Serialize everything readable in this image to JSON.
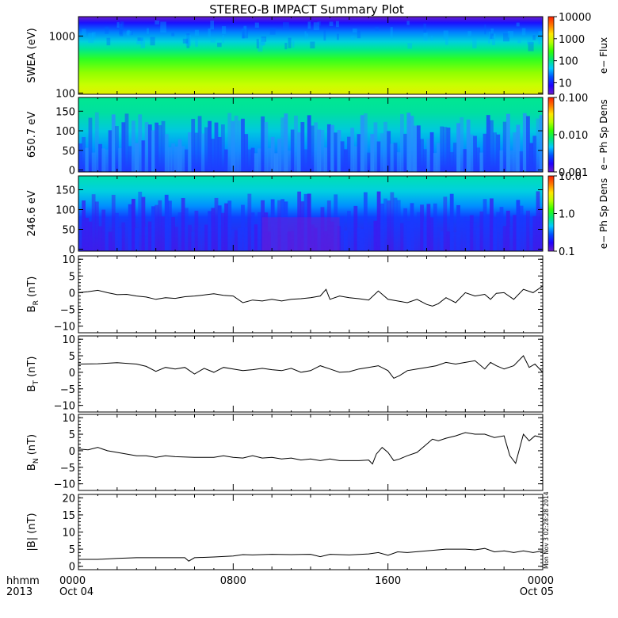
{
  "title": "STEREO-B IMPACT Summary Plot",
  "timestamp": "Mon Nov 3 02:28:28 2014",
  "time_axis": {
    "label_top": "hhmm",
    "label_bottom": "2013",
    "ticks": [
      {
        "hour": 0,
        "top": "0000",
        "bottom": "Oct 04"
      },
      {
        "hour": 8,
        "top": "0800",
        "bottom": ""
      },
      {
        "hour": 16,
        "top": "1600",
        "bottom": ""
      },
      {
        "hour": 24,
        "top": "0000",
        "bottom": "Oct 05"
      }
    ],
    "range_hours": [
      0,
      24
    ]
  },
  "chart_data": [
    {
      "type": "heatmap",
      "ylabel": "SWEA (eV)",
      "yscale": "log",
      "ylim": [
        95,
        2200
      ],
      "yticks": [
        {
          "v": 100,
          "l": "100"
        },
        {
          "v": 1000,
          "l": "1000"
        }
      ],
      "colorbar": {
        "label": "e− Flux",
        "scale": "log",
        "range": [
          3,
          10000
        ],
        "ticks": [
          {
            "v": 10,
            "l": "10"
          },
          {
            "v": 100,
            "l": "100"
          },
          {
            "v": 1000,
            "l": "1000"
          },
          {
            "v": 10000,
            "l": "10000"
          }
        ]
      },
      "palette": [
        "#6a1ec8",
        "#2000ff",
        "#0050ff",
        "#00c8ff",
        "#00e678",
        "#32ff00",
        "#b4ff00",
        "#ffe600",
        "#ff7800",
        "#ff1e00"
      ]
    },
    {
      "type": "heatmap",
      "ylabel": "650.7 eV",
      "ylim": [
        -5,
        185
      ],
      "yticks": [
        {
          "v": 0,
          "l": "0"
        },
        {
          "v": 50,
          "l": "50"
        },
        {
          "v": 100,
          "l": "100"
        },
        {
          "v": 150,
          "l": "150"
        }
      ],
      "colorbar": {
        "label": "e− Ph Sp Dens",
        "scale": "log",
        "range": [
          0.001,
          0.1
        ],
        "ticks": [
          {
            "v": 0.001,
            "l": "0.001"
          },
          {
            "v": 0.01,
            "l": "0.010"
          },
          {
            "v": 0.1,
            "l": "0.100"
          }
        ]
      }
    },
    {
      "type": "heatmap",
      "ylabel": "246.6 eV",
      "ylim": [
        -5,
        185
      ],
      "yticks": [
        {
          "v": 0,
          "l": "0"
        },
        {
          "v": 50,
          "l": "50"
        },
        {
          "v": 100,
          "l": "100"
        },
        {
          "v": 150,
          "l": "150"
        }
      ],
      "colorbar": {
        "label": "e− Ph Sp Dens",
        "scale": "log",
        "range": [
          0.1,
          10
        ],
        "ticks": [
          {
            "v": 0.1,
            "l": "0.1"
          },
          {
            "v": 1,
            "l": "1.0"
          },
          {
            "v": 10,
            "l": "10.0"
          }
        ]
      }
    },
    {
      "type": "line",
      "ylabel": "B_R (nT)",
      "ylabel_main": "B",
      "ylabel_sub": "R",
      "ylabel_unit": " (nT)",
      "ylim": [
        -12,
        11
      ],
      "yticks": [
        {
          "v": -10,
          "l": "−10"
        },
        {
          "v": -5,
          "l": "−5"
        },
        {
          "v": 0,
          "l": "0"
        },
        {
          "v": 5,
          "l": "5"
        },
        {
          "v": 10,
          "l": "10"
        }
      ],
      "x": [
        0,
        0.5,
        1,
        1.5,
        2,
        2.5,
        3,
        3.5,
        4,
        4.5,
        5,
        5.5,
        6,
        6.5,
        7,
        7.5,
        8,
        8.5,
        9,
        9.5,
        10,
        10.5,
        11,
        11.5,
        12,
        12.5,
        12.8,
        13,
        13.5,
        14,
        14.5,
        15,
        15.5,
        16,
        16.5,
        17,
        17.5,
        18,
        18.3,
        18.6,
        19,
        19.5,
        20,
        20.5,
        21,
        21.3,
        21.6,
        22,
        22.5,
        23,
        23.5,
        24
      ],
      "y": [
        0,
        0.3,
        0.7,
        0,
        -0.6,
        -0.5,
        -1,
        -1.3,
        -2,
        -1.5,
        -1.7,
        -1.2,
        -1,
        -0.7,
        -0.3,
        -0.8,
        -1,
        -3,
        -2.2,
        -2.5,
        -2,
        -2.5,
        -2,
        -1.8,
        -1.5,
        -1,
        1,
        -2,
        -1,
        -1.5,
        -1.8,
        -2.2,
        0.5,
        -2,
        -2.5,
        -3,
        -2,
        -3.5,
        -4,
        -3.3,
        -1.5,
        -3,
        0,
        -1,
        -0.5,
        -2,
        -0.2,
        0,
        -2,
        1,
        0,
        2
      ]
    },
    {
      "type": "line",
      "ylabel": "B_T (nT)",
      "ylabel_main": "B",
      "ylabel_sub": "T",
      "ylabel_unit": " (nT)",
      "ylim": [
        -12,
        11
      ],
      "yticks": [
        {
          "v": -10,
          "l": "−10"
        },
        {
          "v": -5,
          "l": "−5"
        },
        {
          "v": 0,
          "l": "0"
        },
        {
          "v": 5,
          "l": "5"
        },
        {
          "v": 10,
          "l": "10"
        }
      ],
      "x": [
        0,
        1,
        2,
        3,
        3.5,
        4,
        4.5,
        5,
        5.5,
        6,
        6.5,
        7,
        7.5,
        8,
        8.5,
        9,
        9.5,
        10,
        10.5,
        11,
        11.5,
        12,
        12.5,
        13,
        13.5,
        14,
        14.5,
        15,
        15.5,
        16,
        16.3,
        16.6,
        17,
        17.5,
        18,
        18.5,
        19,
        19.5,
        20,
        20.5,
        21,
        21.3,
        21.6,
        22,
        22.5,
        23,
        23.3,
        23.6,
        24
      ],
      "y": [
        2.5,
        2.6,
        2.9,
        2.5,
        1.8,
        0.3,
        1.5,
        1,
        1.5,
        -0.5,
        1.2,
        0,
        1.5,
        1,
        0.5,
        0.8,
        1.2,
        0.8,
        0.5,
        1.2,
        0,
        0.5,
        2,
        1,
        0,
        0.2,
        1,
        1.5,
        2,
        0.5,
        -1.8,
        -1,
        0.5,
        1,
        1.5,
        2,
        3,
        2.5,
        3,
        3.5,
        1,
        3,
        2,
        1,
        2,
        5,
        1.5,
        2.5,
        0
      ]
    },
    {
      "type": "line",
      "ylabel": "B_N (nT)",
      "ylabel_main": "B",
      "ylabel_sub": "N",
      "ylabel_unit": " (nT)",
      "ylim": [
        -12,
        11
      ],
      "yticks": [
        {
          "v": -10,
          "l": "−10"
        },
        {
          "v": -5,
          "l": "−5"
        },
        {
          "v": 0,
          "l": "0"
        },
        {
          "v": 5,
          "l": "5"
        },
        {
          "v": 10,
          "l": "10"
        }
      ],
      "x": [
        0,
        0.5,
        1,
        1.5,
        2,
        2.5,
        3,
        3.5,
        4,
        4.5,
        5,
        6,
        7,
        7.5,
        8,
        8.5,
        9,
        9.5,
        10,
        10.5,
        11,
        11.5,
        12,
        12.5,
        13,
        13.5,
        14,
        14.5,
        15,
        15.2,
        15.4,
        15.7,
        16,
        16.3,
        16.6,
        17,
        17.5,
        18,
        18.3,
        18.6,
        19,
        19.5,
        20,
        20.5,
        21,
        21.5,
        22,
        22.3,
        22.6,
        23,
        23.3,
        23.6,
        24
      ],
      "y": [
        0.5,
        0.3,
        1,
        0,
        -0.5,
        -1,
        -1.5,
        -1.5,
        -2,
        -1.5,
        -1.8,
        -2,
        -2,
        -1.5,
        -2,
        -2.2,
        -1.5,
        -2.2,
        -2,
        -2.5,
        -2.2,
        -2.8,
        -2.5,
        -3,
        -2.5,
        -3,
        -3,
        -3,
        -2.8,
        -4,
        -1,
        1,
        -0.5,
        -3,
        -2.5,
        -1.5,
        -0.5,
        2,
        3.5,
        3,
        3.8,
        4.5,
        5.5,
        5,
        5,
        4,
        4.5,
        -1.5,
        -3.8,
        5,
        3,
        4.5,
        4
      ]
    },
    {
      "type": "line",
      "ylabel": "|B| (nT)",
      "ylabel_main": "|B|",
      "ylabel_sub": "",
      "ylabel_unit": " (nT)",
      "ylim": [
        -1,
        21
      ],
      "yticks": [
        {
          "v": 0,
          "l": "0"
        },
        {
          "v": 5,
          "l": "5"
        },
        {
          "v": 10,
          "l": "10"
        },
        {
          "v": 15,
          "l": "15"
        },
        {
          "v": 20,
          "l": "20"
        }
      ],
      "x": [
        0,
        1,
        2,
        3,
        4,
        5,
        5.5,
        5.7,
        6,
        7,
        8,
        8.5,
        9,
        10,
        11,
        12,
        12.5,
        13,
        14,
        15,
        15.5,
        16,
        16.5,
        17,
        18,
        19,
        20,
        20.5,
        21,
        21.5,
        22,
        22.5,
        23,
        23.5,
        24
      ],
      "y": [
        2,
        2,
        2.3,
        2.5,
        2.5,
        2.5,
        2.5,
        1.5,
        2.5,
        2.7,
        3,
        3.4,
        3.3,
        3.5,
        3.4,
        3.5,
        2.8,
        3.5,
        3.3,
        3.6,
        4,
        3.2,
        4.2,
        4,
        4.5,
        5,
        5,
        4.8,
        5.2,
        4.2,
        4.5,
        4,
        4.5,
        4,
        4.5
      ]
    }
  ]
}
